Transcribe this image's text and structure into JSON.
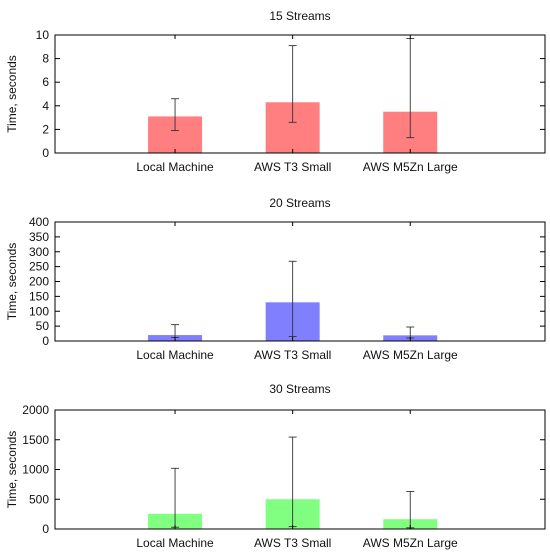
{
  "chart_data": [
    {
      "type": "bar",
      "title": "15 Streams",
      "ylabel": "Time, seconds",
      "xlabel": "",
      "categories": [
        "Local Machine",
        "AWS T3 Small",
        "AWS M5Zn Large"
      ],
      "values": [
        3.1,
        4.3,
        3.5
      ],
      "error_low": [
        1.9,
        2.6,
        1.3
      ],
      "error_high": [
        4.6,
        9.1,
        9.7
      ],
      "ylim": [
        0,
        10
      ],
      "yticks": [
        0,
        2,
        4,
        6,
        8,
        10
      ],
      "ytick_labels": [
        "0",
        "2",
        "4",
        "6",
        "8",
        "10"
      ],
      "color": "#ff7f80",
      "grid": false,
      "legend": "none"
    },
    {
      "type": "bar",
      "title": "20 Streams",
      "ylabel": "Time, seconds",
      "xlabel": "",
      "categories": [
        "Local Machine",
        "AWS T3 Small",
        "AWS M5Zn Large"
      ],
      "values": [
        20,
        130,
        19
      ],
      "error_low": [
        12,
        15,
        10
      ],
      "error_high": [
        55,
        268,
        47
      ],
      "ylim": [
        0,
        400
      ],
      "yticks": [
        0,
        50,
        100,
        150,
        200,
        250,
        300,
        350,
        400
      ],
      "ytick_labels": [
        "0",
        "50",
        "100",
        "150",
        "200",
        "250",
        "300",
        "350",
        "400"
      ],
      "color": "#8080ff",
      "grid": false,
      "legend": "none"
    },
    {
      "type": "bar",
      "title": "30 Streams",
      "ylabel": "Time, seconds",
      "xlabel": "",
      "categories": [
        "Local Machine",
        "AWS T3 Small",
        "AWS M5Zn Large"
      ],
      "values": [
        255,
        500,
        165
      ],
      "error_low": [
        30,
        40,
        20
      ],
      "error_high": [
        1020,
        1545,
        630
      ],
      "ylim": [
        0,
        2000
      ],
      "yticks": [
        0,
        500,
        1000,
        1500,
        2000
      ],
      "ytick_labels": [
        "0",
        "500",
        "1000",
        "1500",
        "2000"
      ],
      "color": "#80ff80",
      "grid": false,
      "legend": "none"
    }
  ]
}
